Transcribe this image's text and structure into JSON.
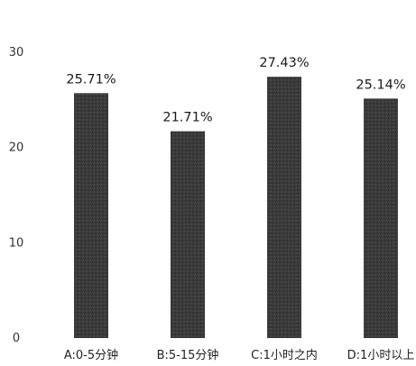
{
  "chart_data": {
    "type": "bar",
    "categories": [
      "A:0-5分钟",
      "B:5-15分钟",
      "C:1小时之内",
      "D:1小时以上"
    ],
    "values": [
      25.71,
      21.71,
      27.43,
      25.14
    ],
    "data_labels": [
      "25.71%",
      "21.71%",
      "27.43%",
      "25.14%"
    ],
    "yticks": [
      0,
      10,
      20,
      30
    ],
    "ylim": [
      0,
      30
    ],
    "title": "",
    "xlabel": "",
    "ylabel": "",
    "grid": false,
    "legend": "none",
    "bar_color": "#3b3b3b"
  }
}
